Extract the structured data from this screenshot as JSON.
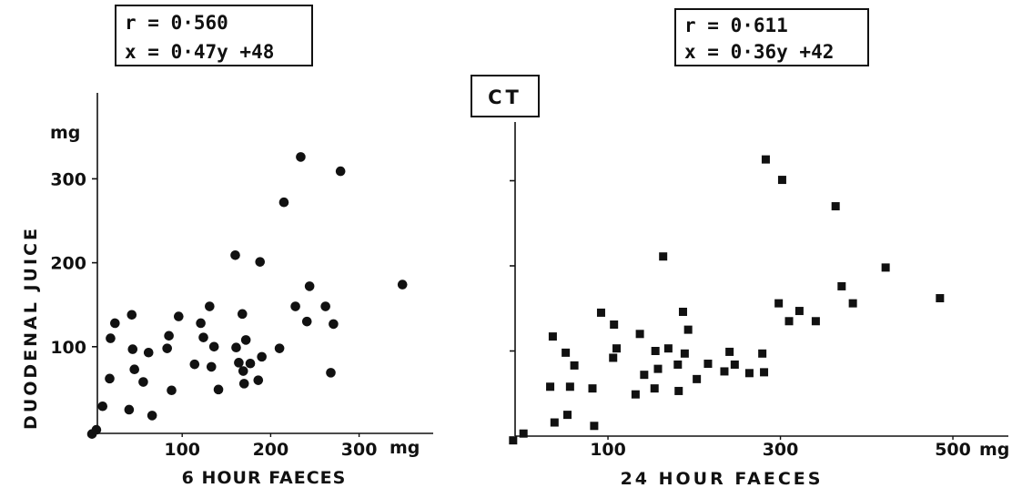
{
  "shared": {
    "ylabel": "DUODENAL JUICE",
    "badge": "CT"
  },
  "chart_data": [
    {
      "type": "scatter",
      "title_line1": "r = 0·560",
      "title_line2": "x = 0·47y +48",
      "xlabel": "6 HOUR FAECES",
      "ylabel": "DUODENAL JUICE",
      "x_unit": "mg",
      "y_unit": "mg",
      "xlim": [
        -5,
        370
      ],
      "ylim": [
        -5,
        375
      ],
      "xticks": [
        100,
        200,
        300
      ],
      "xtick_labels": [
        "100",
        "200",
        "300"
      ],
      "yticks": [
        100,
        200,
        300
      ],
      "ytick_labels": [
        "100",
        "200",
        "300"
      ],
      "marker": "circle",
      "points": [
        [
          -2,
          -4
        ],
        [
          3,
          1
        ],
        [
          10,
          29
        ],
        [
          18,
          62
        ],
        [
          19,
          110
        ],
        [
          24,
          128
        ],
        [
          40,
          25
        ],
        [
          43,
          138
        ],
        [
          44,
          97
        ],
        [
          46,
          73
        ],
        [
          56,
          58
        ],
        [
          62,
          93
        ],
        [
          66,
          18
        ],
        [
          83,
          98
        ],
        [
          85,
          113
        ],
        [
          88,
          48
        ],
        [
          96,
          136
        ],
        [
          114,
          79
        ],
        [
          121,
          128
        ],
        [
          124,
          111
        ],
        [
          131,
          148
        ],
        [
          133,
          76
        ],
        [
          136,
          100
        ],
        [
          141,
          49
        ],
        [
          160,
          209
        ],
        [
          161,
          99
        ],
        [
          164,
          81
        ],
        [
          168,
          139
        ],
        [
          169,
          71
        ],
        [
          170,
          56
        ],
        [
          172,
          108
        ],
        [
          177,
          80
        ],
        [
          186,
          60
        ],
        [
          188,
          201
        ],
        [
          190,
          88
        ],
        [
          210,
          98
        ],
        [
          215,
          272
        ],
        [
          228,
          148
        ],
        [
          234,
          326
        ],
        [
          241,
          130
        ],
        [
          244,
          172
        ],
        [
          262,
          148
        ],
        [
          268,
          69
        ],
        [
          271,
          127
        ],
        [
          279,
          309
        ],
        [
          349,
          174
        ]
      ]
    },
    {
      "type": "scatter",
      "title_line1": "r = 0·611",
      "title_line2": "x = 0·36y +42",
      "xlabel": "24 HOUR FAECES",
      "ylabel": "",
      "x_unit": "mg",
      "xlim": [
        -20,
        560
      ],
      "ylim": [
        -5,
        375
      ],
      "xticks": [
        100,
        300,
        500
      ],
      "xtick_labels": [
        "100",
        "300",
        "500"
      ],
      "yticks": [
        100,
        200,
        300
      ],
      "ytick_labels": [],
      "marker": "square",
      "points": [
        [
          -10,
          -5
        ],
        [
          2,
          3
        ],
        [
          33,
          58
        ],
        [
          36,
          117
        ],
        [
          38,
          16
        ],
        [
          51,
          98
        ],
        [
          53,
          25
        ],
        [
          56,
          58
        ],
        [
          61,
          83
        ],
        [
          82,
          56
        ],
        [
          84,
          12
        ],
        [
          92,
          145
        ],
        [
          106,
          92
        ],
        [
          107,
          131
        ],
        [
          110,
          103
        ],
        [
          132,
          49
        ],
        [
          137,
          120
        ],
        [
          142,
          72
        ],
        [
          154,
          56
        ],
        [
          155,
          100
        ],
        [
          158,
          79
        ],
        [
          164,
          211
        ],
        [
          170,
          103
        ],
        [
          181,
          84
        ],
        [
          182,
          53
        ],
        [
          187,
          146
        ],
        [
          189,
          97
        ],
        [
          193,
          125
        ],
        [
          203,
          67
        ],
        [
          216,
          85
        ],
        [
          235,
          76
        ],
        [
          241,
          99
        ],
        [
          247,
          84
        ],
        [
          264,
          74
        ],
        [
          279,
          97
        ],
        [
          281,
          75
        ],
        [
          283,
          325
        ],
        [
          302,
          301
        ],
        [
          298,
          156
        ],
        [
          310,
          135
        ],
        [
          322,
          147
        ],
        [
          341,
          135
        ],
        [
          364,
          270
        ],
        [
          371,
          176
        ],
        [
          384,
          156
        ],
        [
          422,
          198
        ],
        [
          485,
          162
        ]
      ]
    }
  ]
}
